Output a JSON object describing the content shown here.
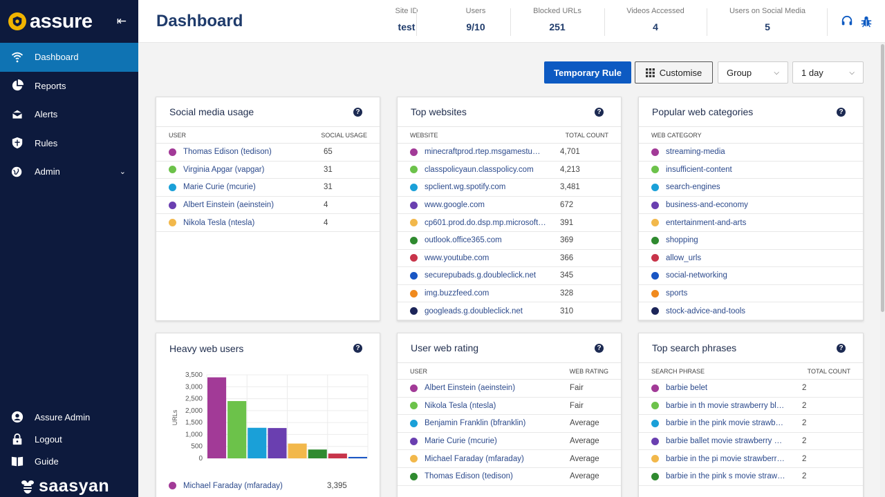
{
  "app": {
    "name": "assure",
    "brand": "saasyan"
  },
  "nav": {
    "items": [
      {
        "label": "Dashboard"
      },
      {
        "label": "Reports"
      },
      {
        "label": "Alerts"
      },
      {
        "label": "Rules"
      },
      {
        "label": "Admin"
      }
    ],
    "bottom": [
      {
        "label": "Assure Admin"
      },
      {
        "label": "Logout"
      },
      {
        "label": "Guide"
      }
    ]
  },
  "header": {
    "title": "Dashboard",
    "stats": [
      {
        "label": "Site ID",
        "value": "test"
      },
      {
        "label": "Users",
        "value": "9/10"
      },
      {
        "label": "Blocked URLs",
        "value": "251"
      },
      {
        "label": "Videos Accessed",
        "value": "4"
      },
      {
        "label": "Users on Social Media",
        "value": "5"
      }
    ]
  },
  "toolbar": {
    "temporary_rule": "Temporary Rule",
    "customise": "Customise",
    "group": "Group",
    "period": "1 day"
  },
  "colors": {
    "accent": "#0f73b3",
    "sidebar": "#0d1a3d",
    "dots": [
      "#a23a97",
      "#6cc24a",
      "#1aa0d8",
      "#6a3fb0",
      "#f2b84b",
      "#2f8a2f",
      "#c8344a",
      "#1956c4",
      "#f08a1e",
      "#1c2559"
    ]
  },
  "social": {
    "title": "Social media usage",
    "col_user": "USER",
    "col_usage": "SOCIAL USAGE",
    "rows": [
      {
        "name": "Thomas Edison (tedison)",
        "value": "65"
      },
      {
        "name": "Virginia Apgar (vapgar)",
        "value": "31"
      },
      {
        "name": "Marie Curie (mcurie)",
        "value": "31"
      },
      {
        "name": "Albert Einstein (aeinstein)",
        "value": "4"
      },
      {
        "name": "Nikola Tesla (ntesla)",
        "value": "4"
      }
    ]
  },
  "websites": {
    "title": "Top websites",
    "col_site": "WEBSITE",
    "col_count": "TOTAL COUNT",
    "rows": [
      {
        "name": "minecraftprod.rtep.msgamestu…",
        "value": "4,701"
      },
      {
        "name": "classpolicyaun.classpolicy.com",
        "value": "4,213"
      },
      {
        "name": "spclient.wg.spotify.com",
        "value": "3,481"
      },
      {
        "name": "www.google.com",
        "value": "672"
      },
      {
        "name": "cp601.prod.do.dsp.mp.microsoft…",
        "value": "391"
      },
      {
        "name": "outlook.office365.com",
        "value": "369"
      },
      {
        "name": "www.youtube.com",
        "value": "366"
      },
      {
        "name": "securepubads.g.doubleclick.net",
        "value": "345"
      },
      {
        "name": "img.buzzfeed.com",
        "value": "328"
      },
      {
        "name": "googleads.g.doubleclick.net",
        "value": "310"
      }
    ]
  },
  "categories": {
    "title": "Popular web categories",
    "col": "WEB CATEGORY",
    "rows": [
      {
        "name": "streaming-media"
      },
      {
        "name": "insufficient-content"
      },
      {
        "name": "search-engines"
      },
      {
        "name": "business-and-economy"
      },
      {
        "name": "entertainment-and-arts"
      },
      {
        "name": "shopping"
      },
      {
        "name": "allow_urls"
      },
      {
        "name": "social-networking"
      },
      {
        "name": "sports"
      },
      {
        "name": "stock-advice-and-tools"
      }
    ]
  },
  "heavy": {
    "title": "Heavy web users",
    "legend_first": {
      "name": "Michael Faraday (mfaraday)",
      "value": "3,395"
    }
  },
  "chart_data": {
    "type": "bar",
    "title": "Heavy web users",
    "ylabel": "URLs",
    "xlabel": "",
    "ylim": [
      0,
      3500
    ],
    "yticks": [
      "3,500",
      "3,000",
      "2,500",
      "2,000",
      "1,500",
      "1,000",
      "500",
      "0"
    ],
    "values": [
      3395,
      2400,
      1280,
      1270,
      620,
      370,
      200,
      60
    ],
    "colors": [
      "#a23a97",
      "#6cc24a",
      "#1aa0d8",
      "#6a3fb0",
      "#f2b84b",
      "#2f8a2f",
      "#c8344a",
      "#1956c4"
    ]
  },
  "rating": {
    "title": "User web rating",
    "col_user": "USER",
    "col_rating": "WEB RATING",
    "rows": [
      {
        "name": "Albert Einstein (aeinstein)",
        "value": "Fair"
      },
      {
        "name": "Nikola Tesla (ntesla)",
        "value": "Fair"
      },
      {
        "name": "Benjamin Franklin (bfranklin)",
        "value": "Average"
      },
      {
        "name": "Marie Curie (mcurie)",
        "value": "Average"
      },
      {
        "name": "Michael Faraday (mfaraday)",
        "value": "Average"
      },
      {
        "name": "Thomas Edison (tedison)",
        "value": "Average"
      }
    ]
  },
  "search": {
    "title": "Top search phrases",
    "col_phrase": "SEARCH PHRASE",
    "col_count": "TOTAL COUNT",
    "rows": [
      {
        "name": "barbie belet",
        "value": "2"
      },
      {
        "name": "barbie in th movie strawberry bl…",
        "value": "2"
      },
      {
        "name": "barbie in the pink movie strawb…",
        "value": "2"
      },
      {
        "name": "barbie ballet movie strawberry …",
        "value": "2"
      },
      {
        "name": "barbie in the pi movie strawberr…",
        "value": "2"
      },
      {
        "name": "barbie in the pink s movie straw…",
        "value": "2"
      }
    ]
  }
}
